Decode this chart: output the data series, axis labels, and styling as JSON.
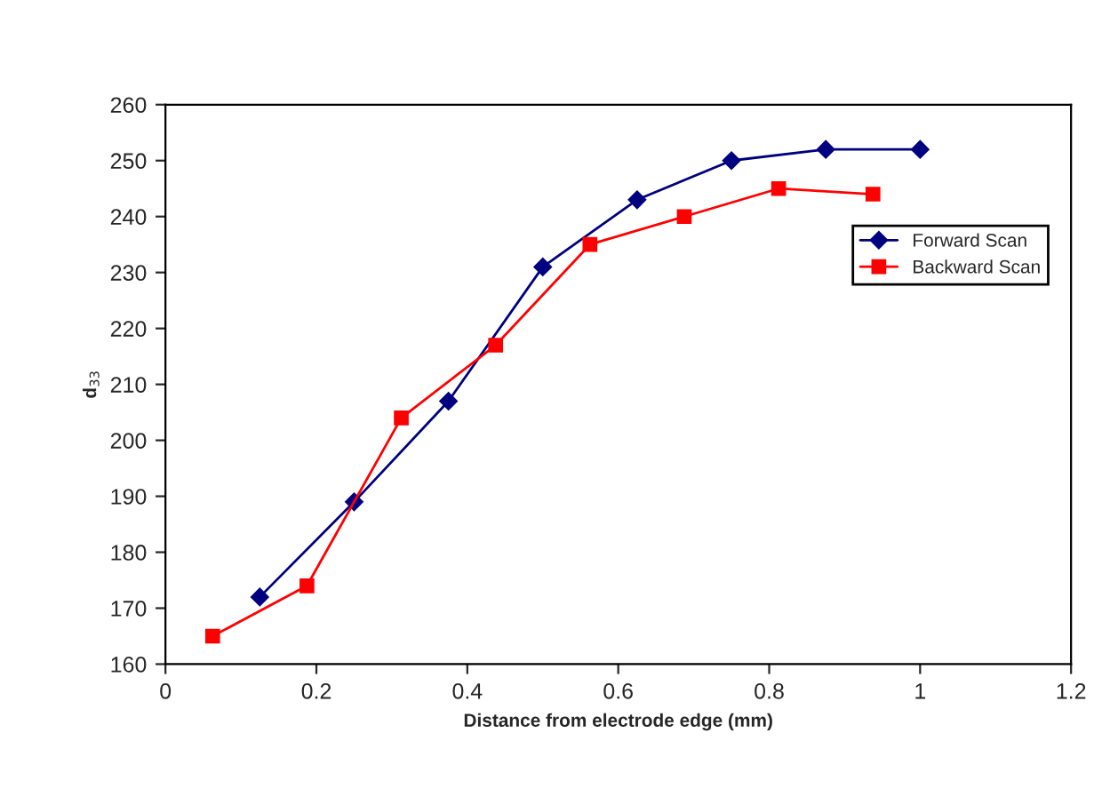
{
  "chart_data": {
    "type": "line",
    "xlabel": "Distance from electrode edge (mm)",
    "ylabel": "d$_{33}$",
    "xlim": [
      0,
      1.2
    ],
    "xticks": [
      0,
      0.2,
      0.4,
      0.6,
      0.8,
      1,
      1.2
    ],
    "ylim": [
      160,
      260
    ],
    "yticks": [
      160,
      170,
      180,
      190,
      200,
      210,
      220,
      230,
      240,
      250,
      260
    ],
    "grid": false,
    "legend": "top right",
    "line_style": "solid",
    "series": [
      {
        "name": "Forward Scan",
        "color": "#000080",
        "marker": "diamond",
        "x": [
          0.125,
          0.25,
          0.375,
          0.5,
          0.625,
          0.75,
          0.875,
          1.0
        ],
        "values": [
          172,
          189,
          207,
          231,
          243,
          250,
          252,
          252
        ]
      },
      {
        "name": "Backward Scan",
        "color": "#ff0000",
        "marker": "square",
        "x": [
          0.0625,
          0.1875,
          0.3125,
          0.4375,
          0.5625,
          0.6875,
          0.8125,
          0.9375
        ],
        "values": [
          165,
          174,
          204,
          217,
          235,
          240,
          245,
          244
        ]
      }
    ]
  }
}
